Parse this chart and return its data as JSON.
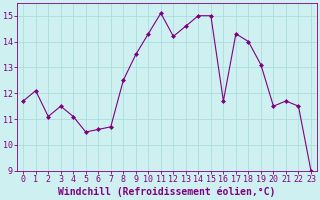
{
  "x": [
    0,
    1,
    2,
    3,
    4,
    5,
    6,
    7,
    8,
    9,
    10,
    11,
    12,
    13,
    14,
    15,
    16,
    17,
    18,
    19,
    20,
    21,
    22,
    23
  ],
  "y": [
    11.7,
    12.1,
    11.1,
    11.5,
    11.1,
    10.5,
    10.6,
    10.7,
    12.5,
    13.5,
    14.3,
    15.1,
    14.2,
    14.6,
    15.0,
    15.0,
    11.7,
    14.3,
    14.0,
    13.1,
    11.5,
    11.7,
    11.5,
    9.0
  ],
  "line_color": "#800080",
  "marker": "D",
  "marker_size": 2,
  "bg_color": "#cff0f0",
  "grid_color": "#aadddd",
  "xlabel": "Windchill (Refroidissement éolien,°C)",
  "xlabel_color": "#800080",
  "xlim": [
    -0.5,
    23.5
  ],
  "ylim": [
    9,
    15.5
  ],
  "yticks": [
    9,
    10,
    11,
    12,
    13,
    14,
    15
  ],
  "xticks": [
    0,
    1,
    2,
    3,
    4,
    5,
    6,
    7,
    8,
    9,
    10,
    11,
    12,
    13,
    14,
    15,
    16,
    17,
    18,
    19,
    20,
    21,
    22,
    23
  ],
  "tick_label_fontsize": 6,
  "xlabel_fontsize": 7,
  "line_width": 0.8
}
